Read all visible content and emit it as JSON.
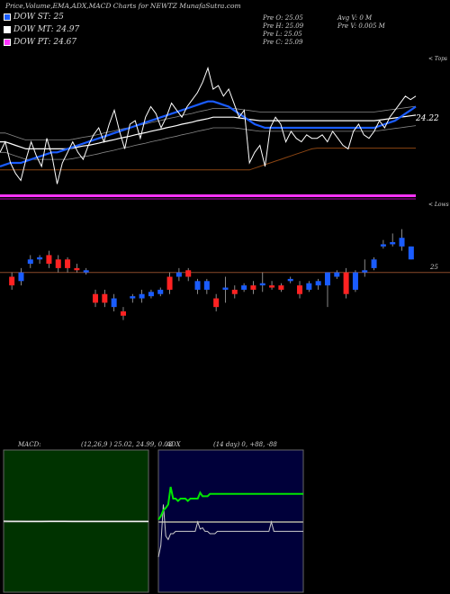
{
  "title": "Price,Volume,EMA,ADX,MACD Charts for NEWTZ MunafaSutra.com",
  "legend": [
    {
      "label": "DOW ST: 25",
      "color": "#1a5cff"
    },
    {
      "label": "DOW MT: 24.97",
      "color": "#ffffff"
    },
    {
      "label": "DOW PT: 24.67",
      "color": "#ff33ff"
    }
  ],
  "info": {
    "open": "Pre   O: 25.05",
    "high": "Pre   H: 25.09",
    "low": "Pre   L: 25.05",
    "close": "Pre   C: 25.09",
    "avg_vol": "Avg V: 0   M",
    "vol": "Pre   V: 0.005 M"
  },
  "labels": {
    "tops": "< Tops",
    "lows": "< Lows",
    "ema_last": "24.22",
    "price_level": "25",
    "macd": "MACD:",
    "macd_vals": "(12,26,9 ) 25.02, 24.99, 0.03",
    "adx": "ADX",
    "adx_vals": "(14  day) 0, +88, -88"
  },
  "colors": {
    "up": "#1a5cff",
    "down": "#ff2222",
    "ema_short": "#1a5cff",
    "ema_mid": "#ffffff",
    "ema_long": "#8b4513",
    "adx_plus": "#00e600"
  },
  "chart_data": [
    {
      "type": "line",
      "title": "Price with EMA",
      "series": [
        {
          "values": [
            23.6,
            23.9,
            23.3,
            23.0,
            22.8,
            23.4,
            23.9,
            23.5,
            23.2,
            24.0,
            23.5,
            22.7,
            23.3,
            23.6,
            23.9,
            23.6,
            23.4,
            23.8,
            24.1,
            24.3,
            23.9,
            24.4,
            24.8,
            24.2,
            23.7,
            24.4,
            24.5,
            24.0,
            24.6,
            24.9,
            24.7,
            24.3,
            24.6,
            25.0,
            24.8,
            24.6,
            24.9,
            25.1,
            25.3,
            25.6,
            26.0,
            25.4,
            25.5,
            25.2,
            25.4,
            25.0,
            24.6,
            24.8,
            23.3,
            23.6,
            23.8,
            23.2,
            24.3,
            24.6,
            24.4,
            23.9,
            24.2,
            24.0,
            23.9,
            24.1,
            24.0,
            24.0,
            24.1,
            23.9,
            24.2,
            24.0,
            23.8,
            23.7,
            24.2,
            24.4,
            24.1,
            24.0,
            24.2,
            24.5,
            24.3,
            24.6,
            24.8,
            25.0,
            25.2,
            25.1,
            25.2
          ]
        },
        {
          "values": [
            23.2,
            23.25,
            23.3,
            23.3,
            23.3,
            23.35,
            23.4,
            23.45,
            23.5,
            23.55,
            23.6,
            23.6,
            23.65,
            23.7,
            23.75,
            23.8,
            23.85,
            23.9,
            23.95,
            24.0,
            24.05,
            24.1,
            24.15,
            24.2,
            24.25,
            24.3,
            24.35,
            24.4,
            24.45,
            24.5,
            24.55,
            24.6,
            24.65,
            24.7,
            24.75,
            24.8,
            24.85,
            24.9,
            24.95,
            25.0,
            25.05,
            25.05,
            25.0,
            24.95,
            24.9,
            24.8,
            24.7,
            24.6,
            24.5,
            24.4,
            24.35,
            24.3,
            24.3,
            24.3,
            24.3,
            24.3,
            24.3,
            24.3,
            24.3,
            24.3,
            24.3,
            24.3,
            24.3,
            24.3,
            24.3,
            24.3,
            24.3,
            24.3,
            24.3,
            24.3,
            24.3,
            24.3,
            24.3,
            24.35,
            24.4,
            24.45,
            24.5,
            24.6,
            24.7,
            24.8,
            24.9
          ]
        },
        {
          "values": [
            23.9,
            23.9,
            23.85,
            23.8,
            23.75,
            23.7,
            23.7,
            23.7,
            23.7,
            23.7,
            23.7,
            23.7,
            23.7,
            23.7,
            23.72,
            23.75,
            23.78,
            23.8,
            23.83,
            23.86,
            23.9,
            23.93,
            23.96,
            24.0,
            24.03,
            24.06,
            24.1,
            24.13,
            24.16,
            24.2,
            24.23,
            24.26,
            24.3,
            24.33,
            24.36,
            24.4,
            24.43,
            24.46,
            24.5,
            24.53,
            24.56,
            24.6,
            24.6,
            24.6,
            24.6,
            24.6,
            24.58,
            24.56,
            24.54,
            24.52,
            24.5,
            24.5,
            24.5,
            24.5,
            24.5,
            24.5,
            24.5,
            24.5,
            24.5,
            24.5,
            24.5,
            24.5,
            24.5,
            24.5,
            24.5,
            24.5,
            24.5,
            24.5,
            24.5,
            24.5,
            24.5,
            24.5,
            24.5,
            24.52,
            24.54,
            24.56,
            24.58,
            24.6,
            24.62,
            24.64,
            24.66
          ]
        },
        {
          "values": [
            23.1,
            23.1,
            23.1,
            23.1,
            23.1,
            23.1,
            23.1,
            23.1,
            23.1,
            23.1,
            23.1,
            23.1,
            23.1,
            23.1,
            23.1,
            23.1,
            23.1,
            23.1,
            23.1,
            23.1,
            23.1,
            23.1,
            23.1,
            23.1,
            23.1,
            23.1,
            23.1,
            23.1,
            23.1,
            23.1,
            23.1,
            23.1,
            23.1,
            23.1,
            23.1,
            23.1,
            23.1,
            23.1,
            23.1,
            23.1,
            23.1,
            23.1,
            23.1,
            23.1,
            23.1,
            23.1,
            23.1,
            23.1,
            23.1,
            23.15,
            23.2,
            23.25,
            23.3,
            23.35,
            23.4,
            23.45,
            23.5,
            23.55,
            23.6,
            23.65,
            23.7,
            23.72,
            23.72,
            23.72,
            23.72,
            23.72,
            23.72,
            23.72,
            23.72,
            23.72,
            23.72,
            23.72,
            23.72,
            23.72,
            23.72,
            23.72,
            23.72,
            23.72,
            23.72,
            23.72,
            23.72
          ]
        }
      ]
    },
    {
      "type": "bar",
      "title": "Candles",
      "candles": [
        {
          "o": 24.9,
          "c": 24.7,
          "h": 25.0,
          "l": 24.6
        },
        {
          "o": 24.8,
          "c": 25.0,
          "h": 25.1,
          "l": 24.7
        },
        {
          "o": 25.2,
          "c": 25.3,
          "h": 25.4,
          "l": 25.1
        },
        {
          "o": 25.3,
          "c": 25.35,
          "h": 25.4,
          "l": 25.2
        },
        {
          "o": 25.4,
          "c": 25.2,
          "h": 25.5,
          "l": 25.1
        },
        {
          "o": 25.3,
          "c": 25.1,
          "h": 25.4,
          "l": 25.0
        },
        {
          "o": 25.3,
          "c": 25.1,
          "h": 25.35,
          "l": 25.0
        },
        {
          "o": 25.1,
          "c": 25.05,
          "h": 25.2,
          "l": 25.0
        },
        {
          "o": 25.0,
          "c": 25.05,
          "h": 25.1,
          "l": 24.95
        },
        {
          "o": 24.5,
          "c": 24.3,
          "h": 24.6,
          "l": 24.2
        },
        {
          "o": 24.5,
          "c": 24.3,
          "h": 24.6,
          "l": 24.2
        },
        {
          "o": 24.2,
          "c": 24.4,
          "h": 24.5,
          "l": 24.1
        },
        {
          "o": 24.1,
          "c": 24.0,
          "h": 24.2,
          "l": 23.9
        },
        {
          "o": 24.4,
          "c": 24.45,
          "h": 24.5,
          "l": 24.3
        },
        {
          "o": 24.4,
          "c": 24.5,
          "h": 24.6,
          "l": 24.3
        },
        {
          "o": 24.45,
          "c": 24.55,
          "h": 24.6,
          "l": 24.4
        },
        {
          "o": 24.5,
          "c": 24.6,
          "h": 24.65,
          "l": 24.45
        },
        {
          "o": 24.9,
          "c": 24.6,
          "h": 25.0,
          "l": 24.5
        },
        {
          "o": 24.9,
          "c": 25.0,
          "h": 25.1,
          "l": 24.8
        },
        {
          "o": 25.05,
          "c": 24.9,
          "h": 25.1,
          "l": 24.8
        },
        {
          "o": 24.6,
          "c": 24.8,
          "h": 24.85,
          "l": 24.5
        },
        {
          "o": 24.6,
          "c": 24.8,
          "h": 24.85,
          "l": 24.5
        },
        {
          "o": 24.4,
          "c": 24.2,
          "h": 24.5,
          "l": 24.1
        },
        {
          "o": 24.6,
          "c": 24.65,
          "h": 24.9,
          "l": 24.3
        },
        {
          "o": 24.6,
          "c": 24.5,
          "h": 24.7,
          "l": 24.4
        },
        {
          "o": 24.6,
          "c": 24.7,
          "h": 24.75,
          "l": 24.55
        },
        {
          "o": 24.7,
          "c": 24.6,
          "h": 24.8,
          "l": 24.5
        },
        {
          "o": 24.7,
          "c": 24.75,
          "h": 25.0,
          "l": 24.55
        },
        {
          "o": 24.7,
          "c": 24.65,
          "h": 24.8,
          "l": 24.6
        },
        {
          "o": 24.7,
          "c": 24.6,
          "h": 24.75,
          "l": 24.55
        },
        {
          "o": 24.8,
          "c": 24.85,
          "h": 24.9,
          "l": 24.75
        },
        {
          "o": 24.7,
          "c": 24.5,
          "h": 24.8,
          "l": 24.4
        },
        {
          "o": 24.6,
          "c": 24.75,
          "h": 24.8,
          "l": 24.55
        },
        {
          "o": 24.7,
          "c": 24.8,
          "h": 24.85,
          "l": 24.6
        },
        {
          "o": 24.7,
          "c": 25.0,
          "h": 25.0,
          "l": 24.2
        },
        {
          "o": 24.9,
          "c": 25.0,
          "h": 25.05,
          "l": 24.85
        },
        {
          "o": 25.0,
          "c": 24.5,
          "h": 25.1,
          "l": 24.4
        },
        {
          "o": 24.6,
          "c": 25.0,
          "h": 25.05,
          "l": 24.55
        },
        {
          "o": 25.0,
          "c": 25.05,
          "h": 25.3,
          "l": 24.9
        },
        {
          "o": 25.1,
          "c": 25.3,
          "h": 25.35,
          "l": 25.05
        },
        {
          "o": 25.6,
          "c": 25.65,
          "h": 25.75,
          "l": 25.55
        },
        {
          "o": 25.65,
          "c": 25.7,
          "h": 25.9,
          "l": 25.6
        },
        {
          "o": 25.6,
          "c": 25.8,
          "h": 26.0,
          "l": 25.5
        },
        {
          "o": 25.3,
          "c": 25.6,
          "h": 25.6,
          "l": 25.3
        }
      ]
    },
    {
      "type": "line",
      "title": "MACD",
      "series": [
        {
          "values": [
            0.05,
            0.04,
            0.04,
            0.03,
            0.03,
            0.03,
            0.03,
            0.03,
            0.03,
            0.03,
            0.03,
            0.03,
            0.03,
            0.03,
            0.03,
            0.03,
            0.03,
            0.03,
            0.03,
            0.03
          ]
        },
        {
          "values": [
            0.03,
            0.03,
            0.03,
            0.03,
            0.03,
            0.03,
            0.04,
            0.04,
            0.04,
            0.03,
            0.03,
            0.03,
            0.03,
            0.03,
            0.03,
            0.03,
            0.03,
            0.03,
            0.03,
            0.03
          ]
        }
      ]
    },
    {
      "type": "line",
      "title": "ADX",
      "series": [
        {
          "values": [
            30,
            40,
            75,
            48,
            45,
            50,
            50,
            52,
            52,
            52,
            52,
            52,
            52,
            52,
            52,
            52,
            60,
            54,
            55,
            52,
            52,
            50,
            50,
            50,
            52,
            52,
            52,
            52,
            52,
            52,
            52,
            52,
            52,
            52,
            52,
            52,
            52,
            52,
            52,
            52,
            52,
            52,
            52,
            52,
            52,
            52,
            60,
            52,
            52,
            52,
            52,
            52,
            52,
            52,
            52,
            52,
            52,
            52,
            52,
            52
          ]
        },
        {
          "values": [
            88,
            85,
            80,
            78,
            75,
            60,
            70,
            70,
            72,
            70,
            70,
            70,
            72,
            70,
            70,
            70,
            70,
            65,
            68,
            68,
            68,
            66,
            66,
            66,
            66,
            66,
            66,
            66,
            66,
            66,
            66,
            66,
            66,
            66,
            66,
            66,
            66,
            66,
            66,
            66,
            66,
            66,
            66,
            66,
            66,
            66,
            66,
            66,
            66,
            66,
            66,
            66,
            66,
            66,
            66,
            66,
            66,
            66,
            66,
            66
          ]
        }
      ]
    }
  ]
}
